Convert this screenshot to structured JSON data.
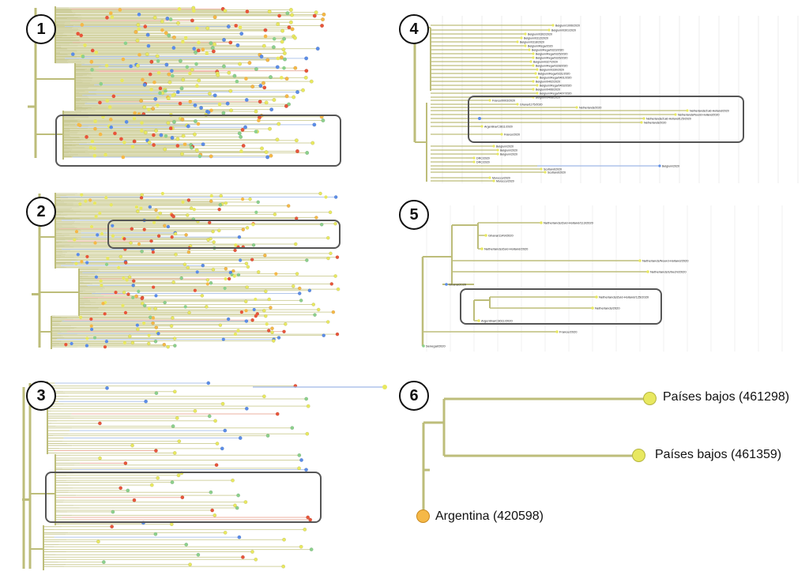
{
  "panels": [
    {
      "number": "1"
    },
    {
      "number": "2"
    },
    {
      "number": "3"
    },
    {
      "number": "4"
    },
    {
      "number": "5"
    },
    {
      "number": "6"
    }
  ],
  "panel4": {
    "tips": [
      "Belgium/1006/2020",
      "Belgium/0301/2020",
      "Belgium/0302/2020",
      "Belgium/0312/2020",
      "Belgium/0318/2020",
      "Belgium/Rega/2020",
      "Belgium/Rega/0323/2020",
      "Belgium/Rega/0325/2020",
      "Belgium/Rega/0326/2020",
      "Belgium/0327/2020",
      "Belgium/Rega/0328/2020",
      "Belgium/0330/2020",
      "Belgium/Rega/0331/2020",
      "Belgium/Rega/0401/2020",
      "Belgium/0402/2020",
      "Belgium/Rega/0403/2020",
      "Belgium/0406/2020",
      "Belgium/Rega/0407/2020",
      "Belgium/0408/2020",
      "France/0003/2020",
      "Ghana/1175/2020",
      "Netherlands/2020",
      "Netherlands/Zuid-Holland/2020",
      "Netherlands/Noord-Holland/2020",
      "Netherlands/Zuid-Holland/125/2020",
      "Netherlands/2020",
      "Argentina/C3611/2020",
      "France/2020",
      "Belgium/2020",
      "Belgium/2020",
      "Belgium/2020",
      "DRC/2020",
      "DRC/2020",
      "Belgium/2020",
      "Scotland/2020",
      "Scotland/2020",
      "Morocco/2020",
      "Morocco/2020"
    ]
  },
  "panel5": {
    "tips": [
      "Netherlands/Zuid-Holland/113/2020",
      "Ghana/1149/2020",
      "Netherlands/Zuid-Holland/2020",
      "Netherlands/Noord-Holland/2020",
      "Netherlands/Utrecht/2020",
      "Ghana/2020",
      "Netherlands/Zuid-Holland/125/2020",
      "Netherlands/2020",
      "Argentina/C3611/2020",
      "France/2020",
      "Senegal/2020"
    ]
  },
  "panel6": {
    "tips": [
      {
        "label": "Países bajos (461298)",
        "color": "#e8e860"
      },
      {
        "label": "Países bajos (461359)",
        "color": "#e8e860"
      },
      {
        "label": "Argentina (420598)",
        "color": "#f5b847"
      }
    ]
  },
  "colors": {
    "branch": "#bdbd7a",
    "yellow": "#e8e860",
    "red": "#e8553a",
    "blue": "#5b8de8",
    "orange": "#f5b847",
    "green": "#8cd08c"
  }
}
